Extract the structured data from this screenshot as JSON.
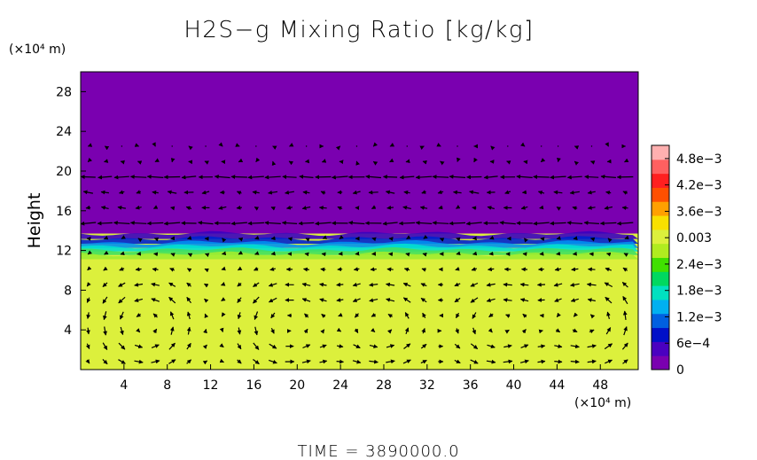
{
  "chart_data": {
    "type": "heatmap",
    "title": "H2S−g Mixing Ratio [kg/kg]",
    "ylabel": "Height",
    "x_unit": "(×10⁴ m)",
    "y_unit": "(×10⁴ m)",
    "footer": "TIME  =  3890000.0",
    "xlim": [
      0,
      51.5
    ],
    "ylim": [
      0,
      30
    ],
    "x_ticks": [
      4,
      8,
      12,
      16,
      20,
      24,
      28,
      32,
      36,
      40,
      44,
      48
    ],
    "y_ticks": [
      4,
      8,
      12,
      16,
      20,
      24,
      28
    ],
    "colorbar": {
      "min": 0,
      "max": 0.0051,
      "tick_values": [
        0,
        0.0006,
        0.0012,
        0.0018,
        0.0024,
        0.003,
        0.0036,
        0.0042,
        0.0048
      ],
      "tick_labels": [
        "0",
        "6e−4",
        "1.2e−3",
        "1.8e−3",
        "2.4e−3",
        "0.003",
        "3.6e−3",
        "4.2e−3",
        "4.8e−3"
      ]
    },
    "field": {
      "upper_value": 0,
      "lower_value": 0.0034,
      "boundary_height": 12.5,
      "transition_band": 1.2
    },
    "vortices": [
      {
        "x": 6,
        "y": 4.5
      },
      {
        "x": 19,
        "y": 4.5
      },
      {
        "x": 28,
        "y": 4.5
      },
      {
        "x": 38.5,
        "y": 4.5
      },
      {
        "x": 47,
        "y": 5
      }
    ],
    "upper_wind_bands": [
      {
        "y": 19,
        "direction": "westward"
      },
      {
        "y": 15,
        "direction": "westward"
      }
    ],
    "vector_color": "#000000",
    "colors": {
      "upper": "#7a00b0",
      "lower": "#dcf03c",
      "bar": [
        "#7a00b0",
        "#4a00c0",
        "#0010c8",
        "#0060e0",
        "#00b0f0",
        "#00e0c0",
        "#00d860",
        "#40e000",
        "#b0ec20",
        "#dcf03c",
        "#f8e000",
        "#ffa000",
        "#ff5000",
        "#ff2020",
        "#ff6060",
        "#ffb0b0"
      ]
    }
  }
}
